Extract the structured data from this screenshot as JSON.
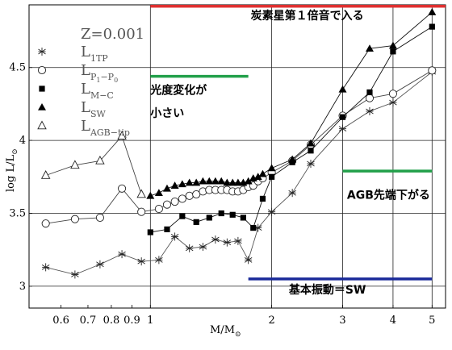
{
  "chart_data": {
    "type": "line",
    "xscale": "log",
    "xlabel": "M/M",
    "xlabel_sub": "⊙",
    "ylabel": "log L/L",
    "ylabel_sub": "⊙",
    "xlim": [
      0.5,
      5.4
    ],
    "ylim": [
      2.85,
      4.93
    ],
    "xticks": [
      {
        "v": 0.6,
        "label": "0.6"
      },
      {
        "v": 0.7,
        "label": "0.7"
      },
      {
        "v": 0.8,
        "label": "0.8"
      },
      {
        "v": 0.9,
        "label": "0.9"
      },
      {
        "v": 1,
        "label": "1"
      },
      {
        "v": 2,
        "label": "2"
      },
      {
        "v": 3,
        "label": "3"
      },
      {
        "v": 4,
        "label": "4"
      },
      {
        "v": 5,
        "label": "5"
      }
    ],
    "yticks": [
      {
        "v": 3,
        "label": "3"
      },
      {
        "v": 3.5,
        "label": "3.5"
      },
      {
        "v": 4,
        "label": "4"
      },
      {
        "v": 4.5,
        "label": "4.5"
      }
    ],
    "grid_h": [
      3.0,
      3.5,
      4.0,
      4.5
    ],
    "grid_v": [
      1.0,
      2.0,
      3.0,
      4.0,
      5.0
    ],
    "metallicity": "Z=0.001",
    "legend": [
      {
        "symbol": "star",
        "text": "L",
        "sub": "1TP"
      },
      {
        "symbol": "circle",
        "text": "L",
        "sub": "P",
        "subsub": [
          "1",
          "0"
        ]
      },
      {
        "symbol": "square",
        "text": "L",
        "sub": "M−C"
      },
      {
        "symbol": "triangle",
        "text": "L",
        "sub": "SW"
      },
      {
        "symbol": "triangle-open",
        "text": "L",
        "sub": "AGB−tip"
      }
    ],
    "series": [
      {
        "key": "1tp",
        "symbol": "star",
        "x": [
          0.55,
          0.65,
          0.75,
          0.85,
          0.95,
          1.05,
          1.15,
          1.25,
          1.35,
          1.45,
          1.55,
          1.65,
          1.75,
          1.85,
          2.0,
          2.25,
          2.5,
          3.0,
          3.5,
          4.0,
          5.0
        ],
        "y": [
          3.13,
          3.08,
          3.15,
          3.22,
          3.17,
          3.18,
          3.34,
          3.26,
          3.27,
          3.32,
          3.3,
          3.31,
          3.18,
          3.4,
          3.51,
          3.64,
          3.84,
          4.08,
          4.2,
          4.26,
          4.47
        ]
      },
      {
        "key": "p10",
        "symbol": "circle",
        "x": [
          0.55,
          0.65,
          0.75,
          0.85,
          0.95,
          1.05,
          1.1,
          1.15,
          1.2,
          1.25,
          1.3,
          1.35,
          1.4,
          1.45,
          1.5,
          1.55,
          1.6,
          1.65,
          1.7,
          1.75,
          1.8,
          1.85,
          1.9,
          2.0,
          2.25,
          2.5,
          3.0,
          3.5,
          4.0,
          5.0
        ],
        "y": [
          3.43,
          3.46,
          3.47,
          3.67,
          3.51,
          3.53,
          3.56,
          3.58,
          3.6,
          3.62,
          3.63,
          3.65,
          3.66,
          3.66,
          3.66,
          3.66,
          3.65,
          3.65,
          3.66,
          3.68,
          3.69,
          3.72,
          3.74,
          3.78,
          3.86,
          3.97,
          4.17,
          4.29,
          4.32,
          4.48
        ]
      },
      {
        "key": "mc",
        "symbol": "square",
        "x": [
          1.0,
          1.1,
          1.2,
          1.3,
          1.4,
          1.5,
          1.6,
          1.7,
          1.8,
          1.9,
          2.0,
          2.25,
          2.5,
          3.0,
          3.5,
          4.0,
          5.0
        ],
        "y": [
          3.37,
          3.39,
          3.48,
          3.44,
          3.47,
          3.5,
          3.49,
          3.47,
          3.4,
          3.6,
          3.75,
          3.85,
          3.93,
          4.16,
          4.33,
          4.61,
          4.78
        ]
      },
      {
        "key": "sw",
        "symbol": "triangle",
        "x": [
          1.0,
          1.05,
          1.1,
          1.15,
          1.2,
          1.25,
          1.3,
          1.35,
          1.4,
          1.45,
          1.5,
          1.55,
          1.6,
          1.65,
          1.7,
          1.75,
          1.8,
          1.85,
          1.9,
          2.0,
          2.25,
          2.5,
          3.0,
          3.5,
          4.0,
          5.0
        ],
        "y": [
          3.62,
          3.64,
          3.67,
          3.69,
          3.7,
          3.71,
          3.71,
          3.72,
          3.72,
          3.72,
          3.72,
          3.71,
          3.71,
          3.71,
          3.71,
          3.72,
          3.74,
          3.75,
          3.77,
          3.81,
          3.87,
          3.98,
          4.35,
          4.63,
          4.65,
          4.88
        ]
      },
      {
        "key": "agbtip",
        "symbol": "triangle-open",
        "x": [
          0.55,
          0.65,
          0.75,
          0.85,
          0.95
        ],
        "y": [
          3.76,
          3.83,
          3.86,
          4.03,
          3.63
        ]
      }
    ],
    "annotations": [
      {
        "text": "炭素星第１倍音で入る",
        "x": 2.45,
        "y": 4.83
      },
      {
        "text": "光度変化が",
        "x": 1.0,
        "y": 4.32
      },
      {
        "text": "小さい",
        "x": 1.0,
        "y": 4.16
      },
      {
        "text": "AGB先端下がる",
        "x": 3.9,
        "y": 3.6
      },
      {
        "text": "基本振動＝SW",
        "x": 2.75,
        "y": 2.95
      }
    ],
    "bands": [
      {
        "color": "#e03030",
        "x1": 1.0,
        "x2": 5.4,
        "y": 4.92
      },
      {
        "color": "#22a04a",
        "x1": 1.0,
        "x2": 1.75,
        "y": 4.44
      },
      {
        "color": "#22a04a",
        "x1": 3.0,
        "x2": 5.0,
        "y": 3.79
      },
      {
        "color": "#1a2a9a",
        "x1": 1.75,
        "x2": 5.0,
        "y": 3.05
      }
    ]
  }
}
